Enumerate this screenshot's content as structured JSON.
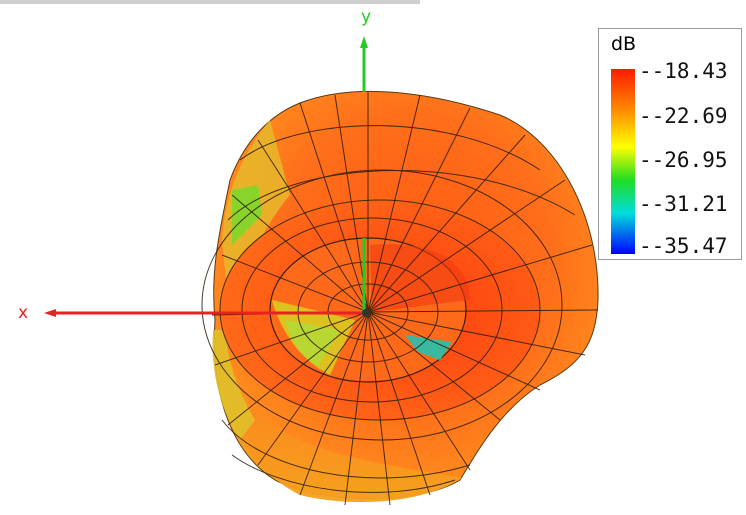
{
  "axes": {
    "x_label": "x",
    "y_label": "y",
    "x_color": "#e8231f",
    "y_color": "#22cc22"
  },
  "legend": {
    "title": "dB",
    "colormap": [
      "#ff1a00",
      "#ff8a00",
      "#ffff00",
      "#22dd22",
      "#00dddd",
      "#0000ff"
    ],
    "entries": [
      {
        "label": "--18.43",
        "value": -18.43
      },
      {
        "label": "--22.69",
        "value": -22.69
      },
      {
        "label": "--26.95",
        "value": -26.95
      },
      {
        "label": "--31.21",
        "value": -31.21
      },
      {
        "label": "--35.47",
        "value": -35.47
      }
    ]
  }
}
